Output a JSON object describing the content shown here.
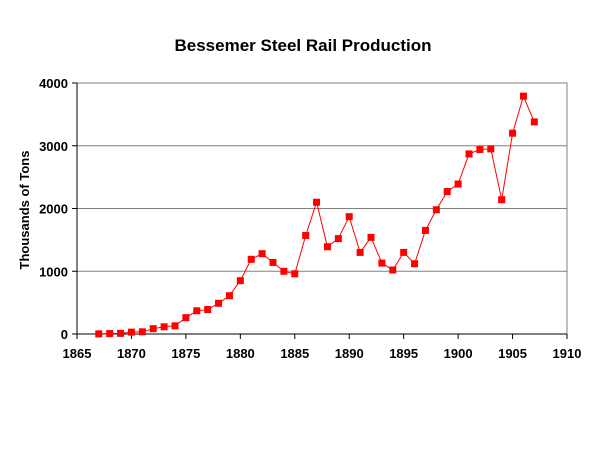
{
  "chart_data": {
    "type": "line",
    "title": "Bessemer Steel Rail Production",
    "xlabel": "",
    "ylabel": "Thousands of Tons",
    "xlim": [
      1865,
      1910
    ],
    "ylim": [
      0,
      4000
    ],
    "x_ticks": [
      1865,
      1870,
      1875,
      1880,
      1885,
      1890,
      1895,
      1900,
      1905,
      1910
    ],
    "y_ticks": [
      0,
      1000,
      2000,
      3000,
      4000
    ],
    "grid": "horizontal",
    "legend": "none",
    "series": [
      {
        "color": "#ff0000",
        "marker": "square",
        "points": [
          [
            1867,
            2
          ],
          [
            1868,
            7
          ],
          [
            1869,
            10
          ],
          [
            1870,
            30
          ],
          [
            1871,
            35
          ],
          [
            1872,
            85
          ],
          [
            1873,
            115
          ],
          [
            1874,
            130
          ],
          [
            1875,
            260
          ],
          [
            1876,
            370
          ],
          [
            1877,
            390
          ],
          [
            1878,
            490
          ],
          [
            1879,
            610
          ],
          [
            1880,
            850
          ],
          [
            1881,
            1190
          ],
          [
            1882,
            1280
          ],
          [
            1883,
            1140
          ],
          [
            1884,
            1000
          ],
          [
            1885,
            960
          ],
          [
            1886,
            1570
          ],
          [
            1887,
            2100
          ],
          [
            1888,
            1390
          ],
          [
            1889,
            1520
          ],
          [
            1890,
            1870
          ],
          [
            1891,
            1300
          ],
          [
            1892,
            1540
          ],
          [
            1893,
            1130
          ],
          [
            1894,
            1020
          ],
          [
            1895,
            1300
          ],
          [
            1896,
            1120
          ],
          [
            1897,
            1650
          ],
          [
            1898,
            1980
          ],
          [
            1899,
            2270
          ],
          [
            1900,
            2390
          ],
          [
            1901,
            2870
          ],
          [
            1902,
            2940
          ],
          [
            1903,
            2950
          ],
          [
            1904,
            2140
          ],
          [
            1905,
            3200
          ],
          [
            1906,
            3790
          ],
          [
            1907,
            3380
          ]
        ]
      }
    ]
  }
}
